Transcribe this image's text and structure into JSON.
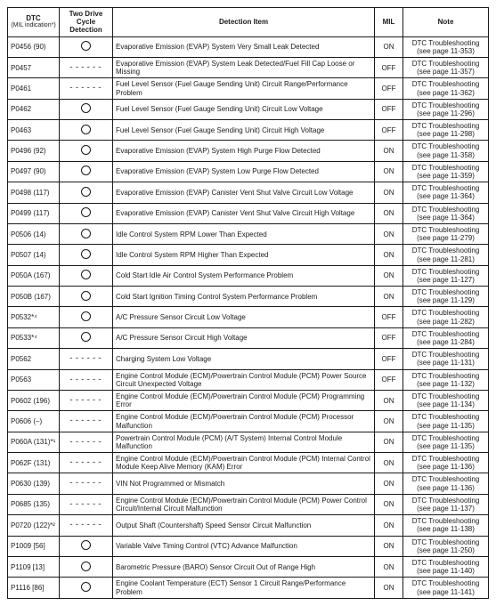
{
  "headers": {
    "dtc_line1": "DTC",
    "dtc_line2": "(MIL indication*)",
    "two": "Two Drive Cycle Detection",
    "detection": "Detection Item",
    "mil": "MIL",
    "note": "Note"
  },
  "note_prefix": "DTC Troubleshooting",
  "rows": [
    {
      "dtc": "P0456 (90)",
      "two": "circle",
      "det": "Evaporative Emission (EVAP) System Very Small Leak Detected",
      "mil": "ON",
      "page": "11-353"
    },
    {
      "dtc": "P0457",
      "two": "dash",
      "det": "Evaporative Emission (EVAP) System Leak Detected/Fuel Fill Cap Loose or Missing",
      "mil": "OFF",
      "page": "11-357"
    },
    {
      "dtc": "P0461",
      "two": "dash",
      "det": "Fuel Level Sensor (Fuel Gauge Sending Unit) Circuit Range/Performance Problem",
      "mil": "OFF",
      "page": "11-362"
    },
    {
      "dtc": "P0462",
      "two": "circle",
      "det": "Fuel Level Sensor (Fuel Gauge Sending Unit) Circuit Low Voltage",
      "mil": "OFF",
      "page": "11-296"
    },
    {
      "dtc": "P0463",
      "two": "circle",
      "det": "Fuel Level Sensor (Fuel Gauge Sending Unit) Circuit High Voltage",
      "mil": "OFF",
      "page": "11-298"
    },
    {
      "dtc": "P0496 (92)",
      "two": "circle",
      "det": "Evaporative Emission (EVAP) System High Purge Flow Detected",
      "mil": "ON",
      "page": "11-358"
    },
    {
      "dtc": "P0497 (90)",
      "two": "circle",
      "det": "Evaporative Emission (EVAP) System Low Purge Flow Detected",
      "mil": "ON",
      "page": "11-359"
    },
    {
      "dtc": "P0498 (117)",
      "two": "circle",
      "det": "Evaporative Emission (EVAP) Canister Vent Shut Valve Circuit Low Voltage",
      "mil": "ON",
      "page": "11-364"
    },
    {
      "dtc": "P0499 (117)",
      "two": "circle",
      "det": "Evaporative Emission (EVAP) Canister Vent Shut Valve Circuit High Voltage",
      "mil": "ON",
      "page": "11-364"
    },
    {
      "dtc": "P0506 (14)",
      "two": "circle",
      "det": "Idle Control System RPM Lower Than Expected",
      "mil": "ON",
      "page": "11-279"
    },
    {
      "dtc": "P0507 (14)",
      "two": "circle",
      "det": "Idle Control System RPM Higher Than Expected",
      "mil": "ON",
      "page": "11-281"
    },
    {
      "dtc": "P050A (167)",
      "two": "circle",
      "det": "Cold Start Idle Air Control System Performance Problem",
      "mil": "ON",
      "page": "11-127"
    },
    {
      "dtc": "P050B (167)",
      "two": "circle",
      "det": "Cold Start Ignition Timing Control System Performance Problem",
      "mil": "ON",
      "page": "11-129"
    },
    {
      "dtc": "P0532*⁴",
      "two": "circle",
      "det": "A/C Pressure Sensor Circuit Low Voltage",
      "mil": "OFF",
      "page": "11-282"
    },
    {
      "dtc": "P0533*⁴",
      "two": "circle",
      "det": "A/C Pressure Sensor Circuit High Voltage",
      "mil": "OFF",
      "page": "11-284"
    },
    {
      "dtc": "P0562",
      "two": "dash",
      "det": "Charging System Low Voltage",
      "mil": "OFF",
      "page": "11-131"
    },
    {
      "dtc": "P0563",
      "two": "dash",
      "det": "Engine Control Module (ECM)/Powertrain Control Module (PCM) Power Source Circuit Unexpected Voltage",
      "mil": "OFF",
      "page": "11-132"
    },
    {
      "dtc": "P0602 (196)",
      "two": "dash",
      "det": "Engine Control Module (ECM)/Powertrain Control Module (PCM) Programming Error",
      "mil": "ON",
      "page": "11-134"
    },
    {
      "dtc": "P0606 (–)",
      "two": "dash",
      "det": "Engine Control Module (ECM)/Powertrain Control Module (PCM) Processor Malfunction",
      "mil": "ON",
      "page": "11-135"
    },
    {
      "dtc": "P060A (131)*¹",
      "two": "dash",
      "det": "Powertrain Control Module (PCM) (A/T System) Internal Control Module Malfunction",
      "mil": "ON",
      "page": "11-135"
    },
    {
      "dtc": "P062F (131)",
      "two": "dash",
      "det": "Engine Control Module (ECM)/Powertrain Control Module (PCM) Internal Control Module Keep Alive Memory (KAM) Error",
      "mil": "ON",
      "page": "11-136"
    },
    {
      "dtc": "P0630 (139)",
      "two": "dash",
      "det": "VIN Not Programmed or Mismatch",
      "mil": "ON",
      "page": "11-136"
    },
    {
      "dtc": "P0685 (135)",
      "two": "dash",
      "det": "Engine Control Module (ECM)/Powertrain Control Module (PCM) Power Control Circuit/Internal Circuit Malfunction",
      "mil": "ON",
      "page": "11-137"
    },
    {
      "dtc": "P0720 (122)*²",
      "two": "dash",
      "det": "Output Shaft (Countershaft) Speed Sensor Circuit Malfunction",
      "mil": "ON",
      "page": "11-138"
    },
    {
      "dtc": "P1009 [56]",
      "two": "circle",
      "det": "Variable Valve Timing Control (VTC) Advance Malfunction",
      "mil": "ON",
      "page": "11-250"
    },
    {
      "dtc": "P1109 [13]",
      "two": "circle",
      "det": "Barometric Pressure (BARO) Sensor Circuit Out of Range High",
      "mil": "ON",
      "page": "11-140"
    },
    {
      "dtc": "P1116 [86]",
      "two": "circle",
      "det": "Engine Coolant Temperature (ECT) Sensor 1 Circuit Range/Performance Problem",
      "mil": "ON",
      "page": "11-141"
    }
  ]
}
